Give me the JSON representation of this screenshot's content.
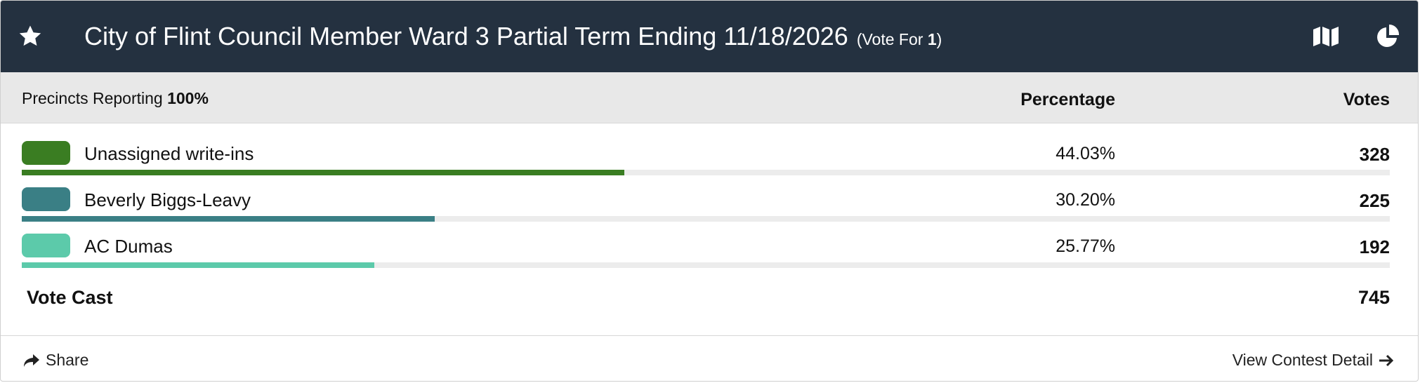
{
  "header": {
    "title": "City of Flint Council Member Ward 3 Partial Term Ending 11/18/2026",
    "vote_for_label": "(Vote For",
    "vote_for_count": 1,
    "vote_for_close": ")"
  },
  "summary": {
    "precincts_label": "Precincts Reporting",
    "precincts_value": "100%",
    "percentage_header": "Percentage",
    "votes_header": "Votes"
  },
  "candidates": [
    {
      "name": "Unassigned write-ins",
      "color": "#3a7d22",
      "percent": 44.03,
      "percent_label": "44.03%",
      "votes": 328
    },
    {
      "name": "Beverly Biggs-Leavy",
      "color": "#3a7f85",
      "percent": 30.2,
      "percent_label": "30.20%",
      "votes": 225
    },
    {
      "name": "AC Dumas",
      "color": "#5ccaaa",
      "percent": 25.77,
      "percent_label": "25.77%",
      "votes": 192
    }
  ],
  "total": {
    "label": "Vote Cast",
    "votes": 745
  },
  "footer": {
    "share": "Share",
    "detail": "View Contest Detail"
  }
}
